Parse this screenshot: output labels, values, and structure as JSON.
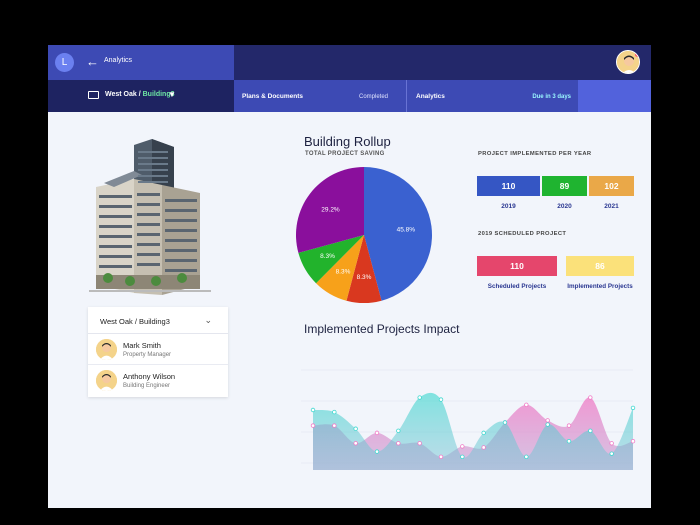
{
  "header": {
    "avatar_initial": "L",
    "title": "Analytics"
  },
  "subbar": {
    "site": "West Oak / ",
    "building": "Building3",
    "tabs": [
      {
        "label": "Plans & Documents",
        "status": "Completed"
      },
      {
        "label": "Analytics",
        "status": "Due in 3 days"
      }
    ]
  },
  "team": {
    "selector": "West Oak / Building3",
    "members": [
      {
        "name": "Mark Smith",
        "role": "Property Manager"
      },
      {
        "name": "Anthony Wilson",
        "role": "Building Engineer"
      }
    ]
  },
  "rollup": {
    "title": "Building Rollup",
    "subtitle": "TOTAL PROJECT SAVING"
  },
  "stats": {
    "per_year_heading": "PROJECT IMPLEMENTED PER YEAR",
    "years": [
      {
        "year": "2019",
        "value": "110",
        "color": "#3556c4"
      },
      {
        "year": "2020",
        "value": "89",
        "color": "#1fb430"
      },
      {
        "year": "2021",
        "value": "102",
        "color": "#eaa848"
      }
    ],
    "scheduled_heading": "2019 SCHEDULED PROJECT",
    "scheduled": [
      {
        "label": "Scheduled Projects",
        "value": "110",
        "color": "#e5466c"
      },
      {
        "label": "Implemented Projects",
        "value": "86",
        "color": "#fbe17a"
      }
    ]
  },
  "impact": {
    "title": "Implemented Projects Impact"
  },
  "chart_data": [
    {
      "type": "pie",
      "slices": [
        {
          "label": "45.8%",
          "value": 45.8,
          "color": "#3a61d0"
        },
        {
          "label": "8.3%",
          "value": 8.3,
          "color": "#d9381f"
        },
        {
          "label": "8.3%",
          "value": 8.3,
          "color": "#f7a11a"
        },
        {
          "label": "8.3%",
          "value": 8.3,
          "color": "#22b32c"
        },
        {
          "label": "29.2%",
          "value": 29.2,
          "color": "#8a0f9c"
        }
      ]
    },
    {
      "type": "area",
      "ylim": [
        0,
        100
      ],
      "series": [
        {
          "color": "#f07bc6",
          "values": [
            35,
            35,
            18,
            28,
            18,
            18,
            5,
            15,
            14,
            38,
            55,
            40,
            35,
            62,
            18,
            20
          ]
        },
        {
          "color": "#3ed8cf",
          "values": [
            50,
            48,
            32,
            10,
            30,
            62,
            60,
            5,
            28,
            38,
            5,
            36,
            20,
            30,
            8,
            52
          ]
        }
      ]
    }
  ]
}
